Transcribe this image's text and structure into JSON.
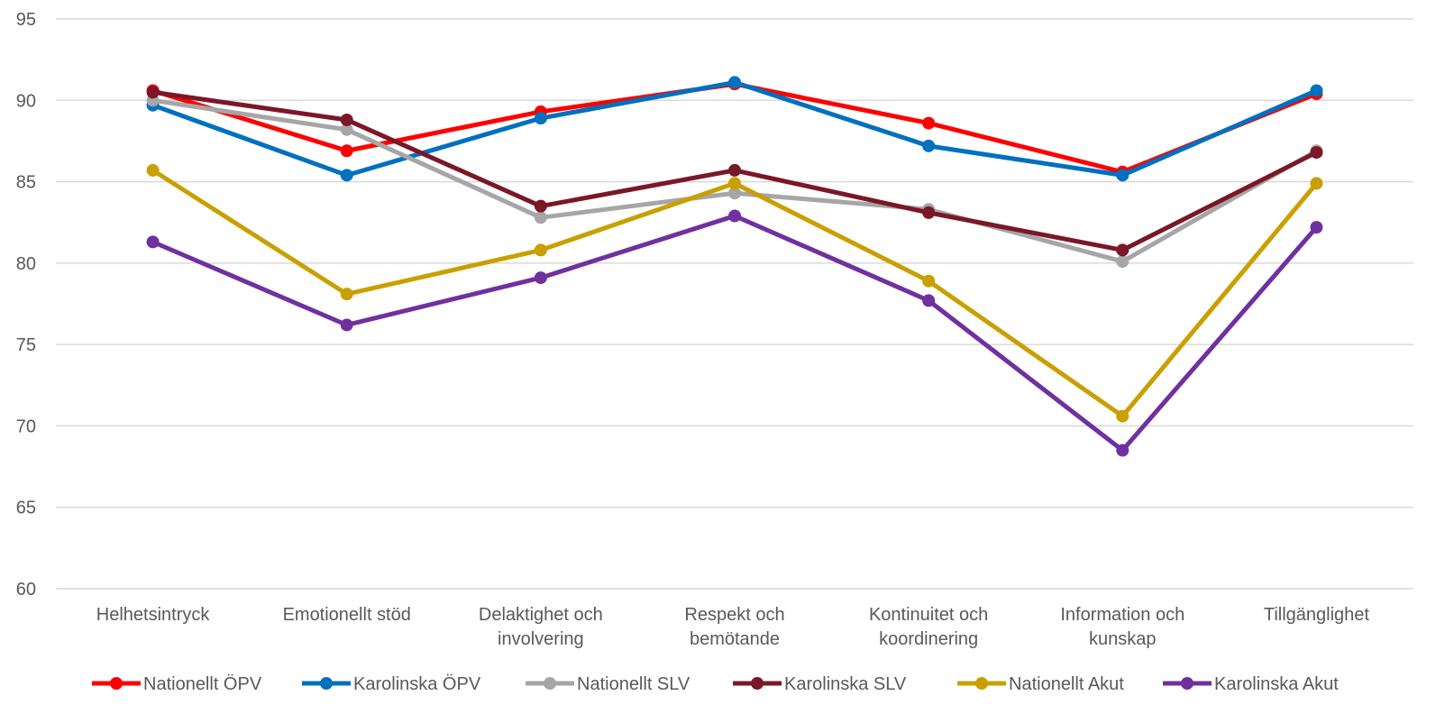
{
  "chart_data": {
    "type": "line",
    "title": "",
    "xlabel": "",
    "ylabel": "",
    "ylim": [
      60,
      95
    ],
    "yticks": [
      "60",
      "65",
      "70",
      "75",
      "80",
      "85",
      "90",
      "95"
    ],
    "grid": true,
    "legend_position": "bottom",
    "categories": [
      "Helhetsintryck",
      "Emotionellt stöd",
      "Delaktighet och involvering",
      "Respekt och bemötande",
      "Kontinuitet och koordinering",
      "Information och kunskap",
      "Tillgänglighet"
    ],
    "category_lines": [
      [
        "Helhetsintryck"
      ],
      [
        "Emotionellt stöd"
      ],
      [
        "Delaktighet och",
        "involvering"
      ],
      [
        "Respekt och",
        "bemötande"
      ],
      [
        "Kontinuitet och",
        "koordinering"
      ],
      [
        "Information och",
        "kunskap"
      ],
      [
        "Tillgänglighet"
      ]
    ],
    "series": [
      {
        "name": "Nationellt ÖPV",
        "color": "#ff0000",
        "values": [
          90.6,
          86.9,
          89.3,
          91.0,
          88.6,
          85.6,
          90.4
        ]
      },
      {
        "name": "Karolinska ÖPV",
        "color": "#0070c0",
        "values": [
          89.7,
          85.4,
          88.9,
          91.1,
          87.2,
          85.4,
          90.6
        ]
      },
      {
        "name": "Nationellt SLV",
        "color": "#a6a6a6",
        "values": [
          90.0,
          88.2,
          82.8,
          84.3,
          83.3,
          80.1,
          86.9
        ]
      },
      {
        "name": "Karolinska SLV",
        "color": "#7b1727",
        "values": [
          90.5,
          88.8,
          83.5,
          85.7,
          83.1,
          80.8,
          86.8
        ]
      },
      {
        "name": "Nationellt Akut",
        "color": "#c9a000",
        "values": [
          85.7,
          78.1,
          80.8,
          84.9,
          78.9,
          70.6,
          84.9
        ]
      },
      {
        "name": "Karolinska Akut",
        "color": "#7030a0",
        "values": [
          81.3,
          76.2,
          79.1,
          82.9,
          77.7,
          68.5,
          82.2
        ]
      }
    ]
  }
}
